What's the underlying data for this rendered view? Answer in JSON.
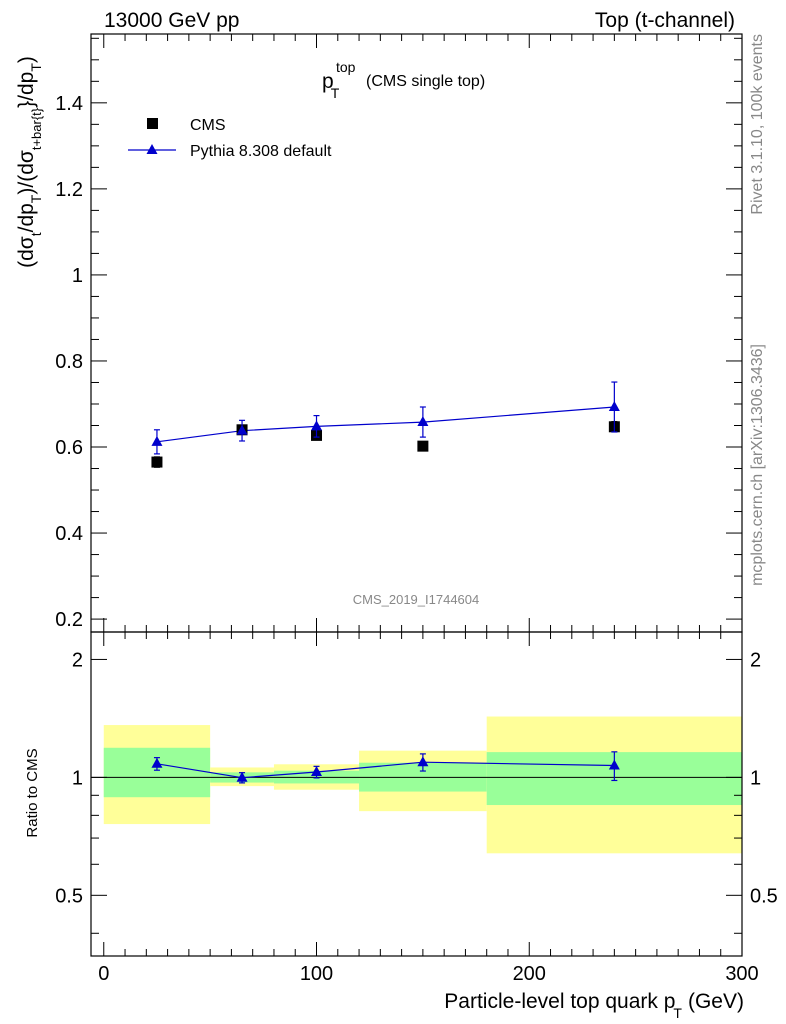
{
  "header": {
    "left": "13000 GeV pp",
    "right": "Top (t-channel)"
  },
  "side_labels": {
    "rivet": "Rivet 3.1.10,  100k events",
    "source": "mcplots.cern.ch [arXiv:1306.3436]"
  },
  "watermark": "CMS_2019_I1744604",
  "chart_data": {
    "type": "scatter",
    "title": {
      "main": "p",
      "sub": "T",
      "sup": "top",
      "suffix": "(CMS single top)"
    },
    "xlabel": {
      "main": "Particle-level top quark p",
      "sub": "T",
      "unit": "(GeV)"
    },
    "ylabel": {
      "text": "(dσ_t/dp_T)/(dσ_t+bar{t}/dp_T)",
      "parts": {
        "open": "(dσ",
        "sub1": "t",
        "p1": "/dp",
        "sub2": "T",
        "p2": ")/(dσ",
        "sub3": "t+bar{t}",
        "p3": "}/dp",
        "sub4": "T",
        "p4": ")"
      }
    },
    "xlim": [
      -6,
      300
    ],
    "ylim": [
      0.17,
      1.56
    ],
    "xticks": [
      0,
      100,
      200,
      300
    ],
    "yticks": [
      0.2,
      0.4,
      0.6,
      0.8,
      1,
      1.2,
      1.4
    ],
    "ytick_labels": [
      "0.2",
      "0.4",
      "0.6",
      "0.8",
      "1",
      "1.2",
      "1.4"
    ],
    "xtick_labels": [
      "0",
      "100",
      "200",
      "300"
    ],
    "legend": {
      "placement": "top-left",
      "entries": [
        "CMS",
        "Pythia 8.308 default"
      ]
    },
    "series": [
      {
        "name": "CMS",
        "marker": "square",
        "color": "#000000",
        "x": [
          25,
          65,
          100,
          150,
          240
        ],
        "y": [
          0.565,
          0.64,
          0.627,
          0.602,
          0.647
        ],
        "yerr": [
          0.012,
          0.01,
          0.01,
          0.01,
          0.012
        ]
      },
      {
        "name": "Pythia 8.308 default",
        "marker": "triangle",
        "color": "#0000cc",
        "x": [
          25,
          65,
          100,
          150,
          240
        ],
        "y": [
          0.612,
          0.638,
          0.648,
          0.658,
          0.693
        ],
        "yerr": [
          0.028,
          0.024,
          0.025,
          0.035,
          0.058
        ]
      }
    ],
    "ratio": {
      "ylabel": "Ratio to CMS",
      "ylim": [
        0.35,
        2.35
      ],
      "yticks": [
        0.5,
        1,
        2
      ],
      "ytick_labels": [
        "0.5",
        "1",
        "2"
      ],
      "reference": 1,
      "bins": [
        {
          "lo": 0,
          "hi": 50,
          "inner": [
            0.89,
            1.19
          ],
          "outer": [
            0.76,
            1.36
          ]
        },
        {
          "lo": 50,
          "hi": 80,
          "inner": [
            0.97,
            1.03
          ],
          "outer": [
            0.95,
            1.06
          ]
        },
        {
          "lo": 80,
          "hi": 120,
          "inner": [
            0.965,
            1.04
          ],
          "outer": [
            0.93,
            1.08
          ]
        },
        {
          "lo": 120,
          "hi": 180,
          "inner": [
            0.92,
            1.09
          ],
          "outer": [
            0.82,
            1.17
          ]
        },
        {
          "lo": 180,
          "hi": 300,
          "inner": [
            0.85,
            1.16
          ],
          "outer": [
            0.64,
            1.43
          ]
        }
      ],
      "points": {
        "x": [
          25,
          65,
          100,
          150,
          240
        ],
        "y": [
          1.083,
          0.998,
          1.032,
          1.093,
          1.072
        ],
        "yerr": [
          0.04,
          0.03,
          0.035,
          0.055,
          0.09
        ]
      }
    },
    "colors": {
      "inner_band": "#99ff99",
      "outer_band": "#ffff99",
      "mc": "#0000cc",
      "data": "#000000"
    }
  }
}
